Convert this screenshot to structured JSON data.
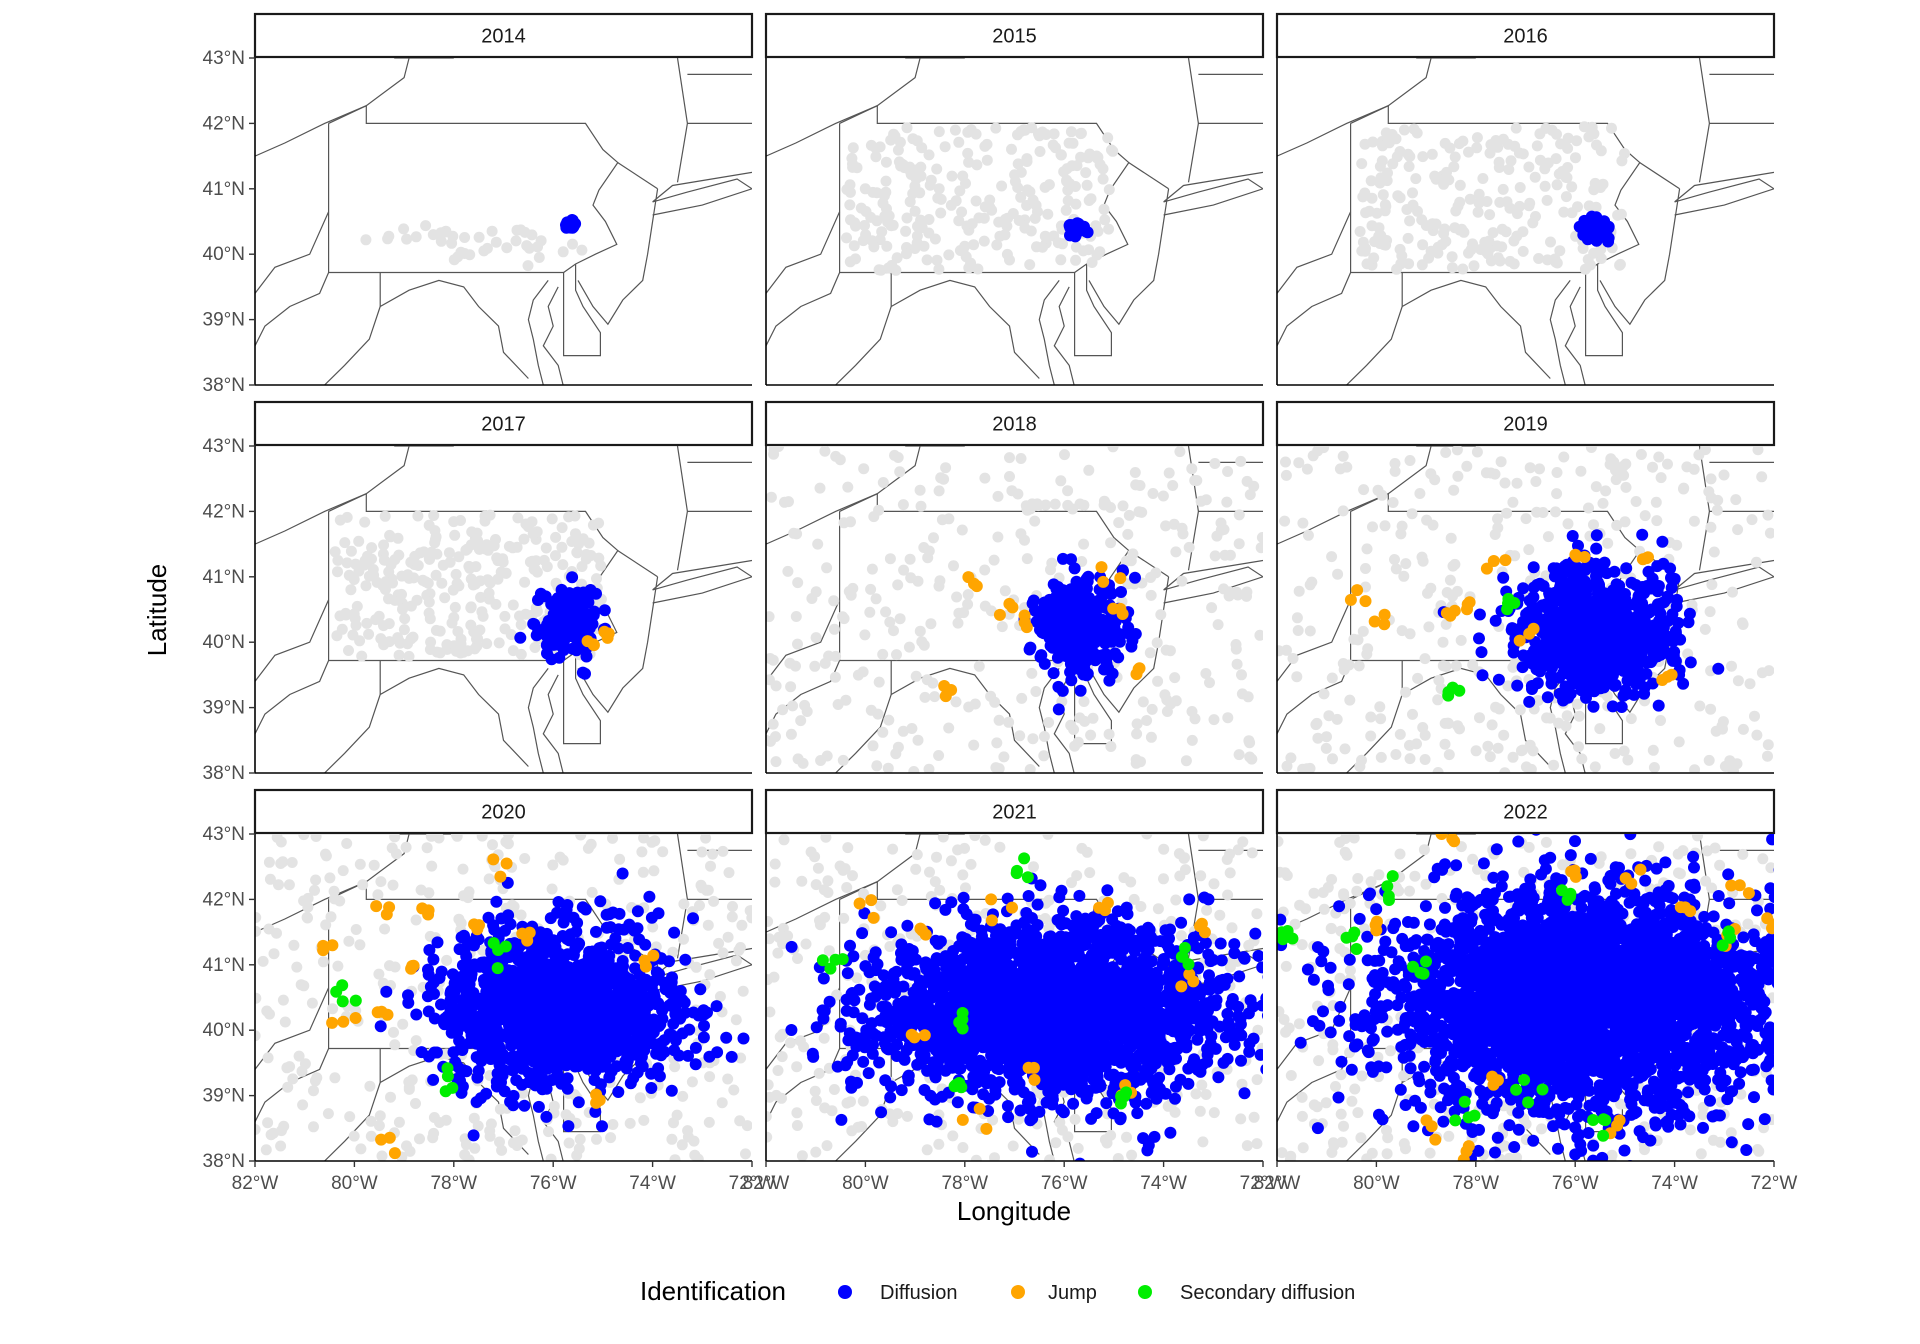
{
  "chart_data": {
    "type": "scatter",
    "facet_by": "year",
    "facets": [
      "2014",
      "2015",
      "2016",
      "2017",
      "2018",
      "2019",
      "2020",
      "2021",
      "2022"
    ],
    "xlabel": "Longitude",
    "ylabel": "Latitude",
    "xlim": [
      -82,
      -72
    ],
    "ylim": [
      38,
      43
    ],
    "x_ticks": [
      -82,
      -80,
      -78,
      -76,
      -74,
      -72
    ],
    "x_tick_labels": [
      "82°W",
      "80°W",
      "78°W",
      "76°W",
      "74°W",
      "72°W"
    ],
    "y_ticks": [
      38,
      39,
      40,
      41,
      42,
      43
    ],
    "y_tick_labels": [
      "38°N",
      "39°N",
      "40°N",
      "41°N",
      "42°N",
      "43°N"
    ],
    "grid": false,
    "background_points_color": "#e3e3e3",
    "legend": {
      "title": "Identification",
      "position": "bottom",
      "entries": [
        {
          "label": "Diffusion",
          "color": "#0000ff"
        },
        {
          "label": "Jump",
          "color": "#ffa500"
        },
        {
          "label": "Secondary diffusion",
          "color": "#00ee00"
        }
      ]
    },
    "series_by_year": {
      "2014": {
        "diffusion_centroid": [
          -75.65,
          40.45
        ],
        "diffusion_extent": [
          0.15,
          0.1
        ],
        "jumps": [],
        "secondary": []
      },
      "2015": {
        "diffusion_centroid": [
          -75.75,
          40.4
        ],
        "diffusion_extent": [
          0.25,
          0.15
        ],
        "jumps": [],
        "secondary": []
      },
      "2016": {
        "diffusion_centroid": [
          -75.6,
          40.4
        ],
        "diffusion_extent": [
          0.45,
          0.3
        ],
        "jumps": [],
        "secondary": []
      },
      "2017": {
        "diffusion_centroid": [
          -75.7,
          40.3
        ],
        "diffusion_extent": [
          0.9,
          0.8
        ],
        "jumps": [
          [
            -74.9,
            40.1
          ],
          [
            -75.3,
            39.95
          ]
        ],
        "secondary": []
      },
      "2018": {
        "diffusion_centroid": [
          -75.7,
          40.25
        ],
        "diffusion_extent": [
          1.3,
          1.1
        ],
        "jumps": [
          [
            -78.4,
            39.2
          ],
          [
            -77.9,
            40.9
          ],
          [
            -77.2,
            40.55
          ],
          [
            -76.8,
            40.35
          ],
          [
            -74.9,
            40.5
          ],
          [
            -74.6,
            39.6
          ],
          [
            -75.1,
            41.05
          ]
        ],
        "secondary": []
      },
      "2019": {
        "diffusion_centroid": [
          -75.6,
          40.15
        ],
        "diffusion_extent": [
          2.5,
          1.4
        ],
        "jumps": [
          [
            -80.3,
            40.6
          ],
          [
            -79.9,
            40.4
          ],
          [
            -78.6,
            40.5
          ],
          [
            -77.5,
            41.2
          ],
          [
            -76.9,
            40.1
          ],
          [
            -75.9,
            41.3
          ],
          [
            -74.6,
            41.3
          ],
          [
            -74.2,
            39.4
          ],
          [
            -78.2,
            40.55
          ]
        ],
        "secondary": [
          [
            -78.4,
            39.2
          ],
          [
            -77.3,
            40.6
          ]
        ]
      },
      "2020": {
        "diffusion_centroid": [
          -75.9,
          40.35
        ],
        "diffusion_extent": [
          3.6,
          1.8
        ],
        "jumps": [
          [
            -79.5,
            41.9
          ],
          [
            -78.5,
            41.8
          ],
          [
            -77.5,
            41.6
          ],
          [
            -76.5,
            41.5
          ],
          [
            -77.1,
            42.5
          ],
          [
            -80.3,
            40.2
          ],
          [
            -79.5,
            40.3
          ],
          [
            -78.8,
            40.9
          ],
          [
            -79.3,
            38.3
          ],
          [
            -74.1,
            41.1
          ],
          [
            -75.1,
            38.95
          ],
          [
            -80.6,
            41.3
          ]
        ],
        "secondary": [
          [
            -80.1,
            40.6
          ],
          [
            -78.1,
            39.2
          ],
          [
            -77.1,
            41.2
          ]
        ]
      },
      "2021": {
        "diffusion_centroid": [
          -76.2,
          40.3
        ],
        "diffusion_extent": [
          5.4,
          2.0
        ],
        "jumps": [
          [
            -80.0,
            41.9
          ],
          [
            -78.9,
            41.5
          ],
          [
            -77.3,
            41.9
          ],
          [
            -75.2,
            42.0
          ],
          [
            -77.8,
            38.7
          ],
          [
            -76.8,
            39.4
          ],
          [
            -74.8,
            39.0
          ],
          [
            -73.5,
            40.8
          ],
          [
            -73.1,
            41.5
          ],
          [
            -79.0,
            40.0
          ]
        ],
        "secondary": [
          [
            -80.6,
            41.1
          ],
          [
            -78.1,
            39.2
          ],
          [
            -76.9,
            42.4
          ],
          [
            -74.7,
            38.95
          ],
          [
            -73.6,
            41.1
          ],
          [
            -78.0,
            40.1
          ]
        ]
      },
      "2022": {
        "diffusion_centroid": [
          -75.8,
          40.4
        ],
        "diffusion_extent": [
          6.0,
          2.6
        ],
        "jumps": [
          [
            -78.6,
            42.9
          ],
          [
            -76.0,
            42.4
          ],
          [
            -74.9,
            42.3
          ],
          [
            -73.8,
            41.9
          ],
          [
            -73.0,
            41.4
          ],
          [
            -72.7,
            42.2
          ],
          [
            -72.0,
            41.6
          ],
          [
            -78.8,
            38.5
          ],
          [
            -77.6,
            39.2
          ],
          [
            -75.3,
            38.6
          ],
          [
            -78.1,
            38.2
          ],
          [
            -80.0,
            41.6
          ]
        ],
        "secondary": [
          [
            -81.8,
            41.5
          ],
          [
            -80.5,
            41.4
          ],
          [
            -79.7,
            42.1
          ],
          [
            -78.2,
            38.7
          ],
          [
            -77.0,
            39.1
          ],
          [
            -76.2,
            42.0
          ],
          [
            -75.5,
            38.6
          ],
          [
            -72.9,
            41.5
          ],
          [
            -79.1,
            40.9
          ]
        ]
      }
    }
  }
}
